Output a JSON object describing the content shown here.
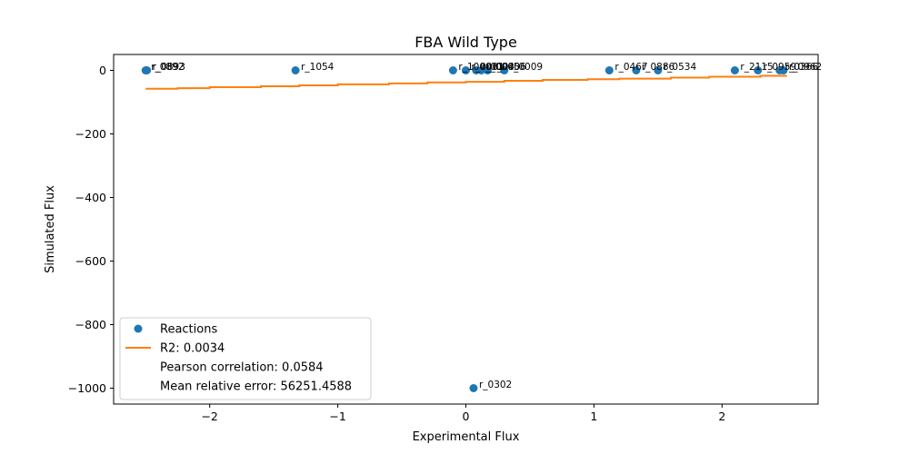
{
  "chart_data": {
    "type": "scatter",
    "title": "FBA Wild Type",
    "xlabel": "Experimental Flux",
    "ylabel": "Simulated Flux",
    "xlim": [
      -2.75,
      2.75
    ],
    "ylim": [
      -1050,
      50
    ],
    "x_ticks": [
      -2,
      -1,
      0,
      1,
      2
    ],
    "x_tick_labels": [
      "−2",
      "−1",
      "0",
      "1",
      "2"
    ],
    "y_ticks": [
      0,
      -200,
      -400,
      -600,
      -800,
      -1000
    ],
    "y_tick_labels": [
      "0",
      "−200",
      "−400",
      "−600",
      "−800",
      "−1000"
    ],
    "grid": false,
    "legend_position": "lower-left",
    "colors": {
      "points": "#1f77b4",
      "fit_line": "#ff7f0e"
    },
    "series": [
      {
        "name": "Reactions",
        "points": [
          {
            "x": -2.5,
            "y": 0,
            "label": "r_0892"
          },
          {
            "x": -2.49,
            "y": 0,
            "label": "r_0893"
          },
          {
            "x": -1.33,
            "y": 0,
            "label": "r_1054"
          },
          {
            "x": -0.1,
            "y": 0,
            "label": "r_1000"
          },
          {
            "x": 0.0,
            "y": 0,
            "label": "r_0001"
          },
          {
            "x": 0.06,
            "y": -1000,
            "label": "r_0302"
          },
          {
            "x": 0.08,
            "y": 0,
            "label": "r_0004"
          },
          {
            "x": 0.12,
            "y": 0,
            "label": "r_0005"
          },
          {
            "x": 0.17,
            "y": 0,
            "label": "r_0006"
          },
          {
            "x": 0.3,
            "y": 0,
            "label": "r_0009"
          },
          {
            "x": 1.12,
            "y": 0,
            "label": "r_0467"
          },
          {
            "x": 1.33,
            "y": 0,
            "label": "r_0886"
          },
          {
            "x": 1.5,
            "y": 0,
            "label": "r_0534"
          },
          {
            "x": 2.1,
            "y": 0,
            "label": "r_2115"
          },
          {
            "x": 2.28,
            "y": 0,
            "label": "r_0959"
          },
          {
            "x": 2.45,
            "y": 0,
            "label": "r_0366"
          },
          {
            "x": 2.48,
            "y": 0,
            "label": "r_0962"
          }
        ]
      }
    ],
    "fit_line": {
      "name": "R2: 0.0034",
      "steps": [
        {
          "x": -2.5,
          "y": -58
        },
        {
          "x": -2.25,
          "y": -56
        },
        {
          "x": -2.0,
          "y": -53
        },
        {
          "x": -1.6,
          "y": -50
        },
        {
          "x": -1.3,
          "y": -47
        },
        {
          "x": -1.0,
          "y": -44
        },
        {
          "x": -0.6,
          "y": -41
        },
        {
          "x": -0.3,
          "y": -38
        },
        {
          "x": 0.0,
          "y": -36
        },
        {
          "x": 0.3,
          "y": -33
        },
        {
          "x": 0.6,
          "y": -30
        },
        {
          "x": 0.95,
          "y": -28
        },
        {
          "x": 1.2,
          "y": -26
        },
        {
          "x": 1.6,
          "y": -23
        },
        {
          "x": 1.9,
          "y": -20
        },
        {
          "x": 2.3,
          "y": -17
        },
        {
          "x": 2.5,
          "y": -15
        }
      ]
    },
    "legend_entries": [
      {
        "label": "Reactions",
        "marker": "circle"
      },
      {
        "label": "R2: 0.0034",
        "marker": "line"
      },
      {
        "label": "Pearson correlation: 0.0584",
        "marker": "none"
      },
      {
        "label": "Mean relative error: 56251.4588",
        "marker": "none"
      }
    ]
  }
}
